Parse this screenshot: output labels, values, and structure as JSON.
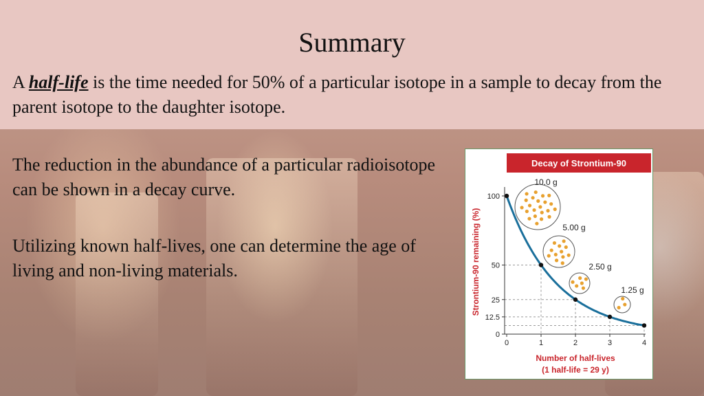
{
  "slide": {
    "title": "Summary",
    "para1": {
      "prefix": "A ",
      "term": "half-life",
      "rest": " is the time needed for 50% of a particular isotope in a sample to decay from the parent isotope to the daughter isotope."
    },
    "para2": "The reduction in the abundance of a particular radioisotope can be shown in a decay curve.",
    "para3": "Utilizing known half-lives, one can determine the age of living and non-living materials."
  },
  "colors": {
    "banner": "#c9252c",
    "curve": "#1a6f9b",
    "atom": "#e8a12f",
    "axis_text": "#c9252c"
  },
  "chart_data": {
    "type": "line",
    "title": "Decay of Strontium-90",
    "xlabel": "Number of half-lives",
    "xlabel2": "(1 half-life = 29 y)",
    "ylabel": "Strontium-90 remaining (%)",
    "x": [
      0,
      1,
      2,
      3,
      4
    ],
    "y": [
      100,
      50,
      25,
      12.5,
      6.25
    ],
    "xlim": [
      0,
      4
    ],
    "ylim": [
      0,
      100
    ],
    "x_ticks": [
      "0",
      "1",
      "2",
      "3",
      "4"
    ],
    "y_ticks": [
      {
        "value": 0,
        "label": "0"
      },
      {
        "value": 12.5,
        "label": "12.5"
      },
      {
        "value": 25,
        "label": "25"
      },
      {
        "value": 50,
        "label": "50"
      },
      {
        "value": 100,
        "label": "100"
      }
    ],
    "samples": [
      {
        "label": "10.0 g",
        "dots": 22
      },
      {
        "label": "5.00 g",
        "dots": 12
      },
      {
        "label": "2.50 g",
        "dots": 6
      },
      {
        "label": "1.25 g",
        "dots": 3
      }
    ]
  }
}
